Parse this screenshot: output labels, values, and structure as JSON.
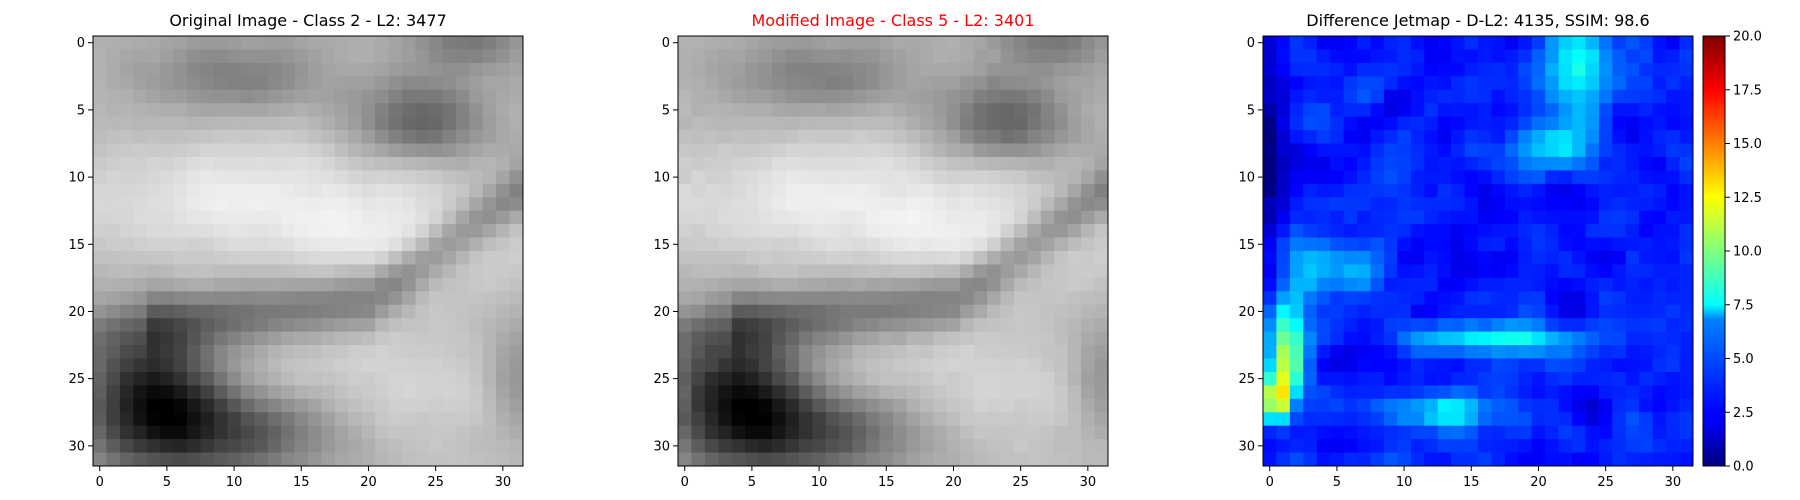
{
  "chart_data": [
    {
      "type": "heatmap",
      "title": "Original Image - Class 2 - L2: 3477",
      "title_color": "#000000",
      "colormap": "gray",
      "description_of_values": "32x32 grayscale image: bright horizontal band (rows ~8-17), darker diagonal band around rows 18-23, dark region lower-left (rows 22-31, cols 0-12), bright lower-right region.",
      "xticks": [
        0,
        5,
        10,
        15,
        20,
        25,
        30
      ],
      "yticks": [
        0,
        5,
        10,
        15,
        20,
        25,
        30
      ],
      "xlim": [
        -0.5,
        31.5
      ],
      "ylim": [
        31.5,
        -0.5
      ]
    },
    {
      "type": "heatmap",
      "title": "Modified Image - Class 5 - L2: 3401",
      "title_color": "#ff0000",
      "colormap": "gray",
      "xticks": [
        0,
        5,
        10,
        15,
        20,
        25,
        30
      ],
      "yticks": [
        0,
        5,
        10,
        15,
        20,
        25,
        30
      ],
      "xlim": [
        -0.5,
        31.5
      ],
      "ylim": [
        31.5,
        -0.5
      ]
    },
    {
      "type": "heatmap",
      "title": "Difference Jetmap - D-L2: 4135, SSIM: 98.6",
      "title_color": "#000000",
      "colormap": "jet",
      "value_range": [
        0,
        20
      ],
      "colorbar_ticks": [
        "0.0",
        "2.5",
        "5.0",
        "7.5",
        "10.0",
        "12.5",
        "15.0",
        "17.5",
        "20.0"
      ],
      "xticks": [
        0,
        5,
        10,
        15,
        20,
        25,
        30
      ],
      "yticks": [
        0,
        5,
        10,
        15,
        20,
        25,
        30
      ],
      "xlim": [
        -0.5,
        31.5
      ],
      "ylim": [
        31.5,
        -0.5
      ]
    }
  ]
}
